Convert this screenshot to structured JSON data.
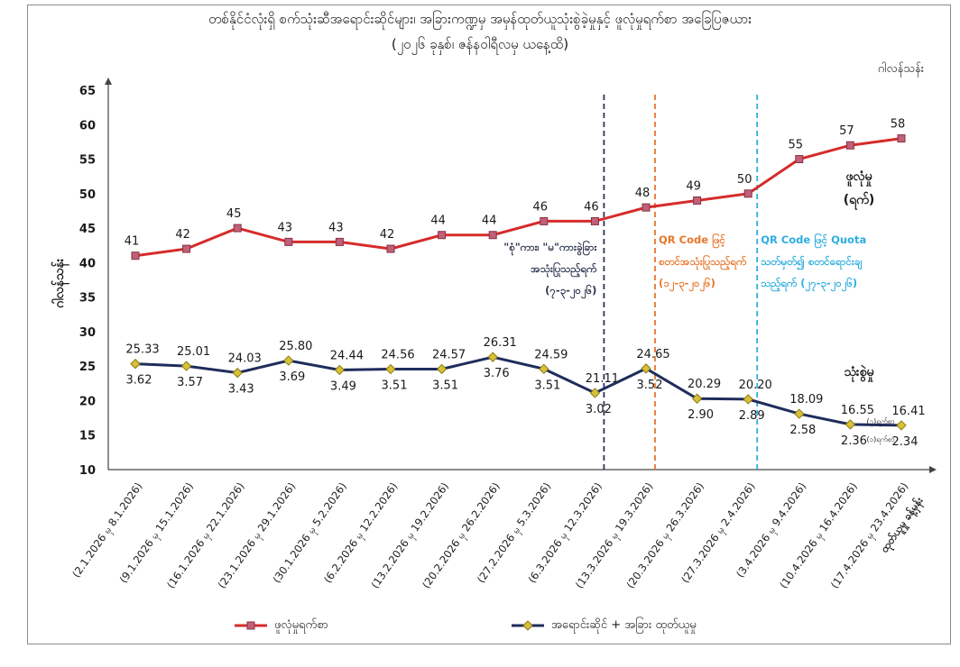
{
  "chart_data": {
    "type": "line",
    "title_line1": "တစ်နိုင်ငံလုံးရှိ စက်သုံးဆီအရောင်းဆိုင်များ၊ အခြားကဏ္ဍမှ အမှန်ထုတ်ယူသုံးစွဲခဲ့မှုနှင့် ဖူလုံမှုရက်စာ အခြေပြဇယား",
    "title_line2": "(၂၀၂၆ ခုနှစ်၊ ဇန်နဝါရီလမှ ယနေ့ထိ)",
    "unit_top": "ဂါလန်သန်း",
    "ylabel": "ဂါလန်သန်း",
    "ylim": [
      10,
      65
    ],
    "yticks": [
      "10",
      "15",
      "20",
      "25",
      "30",
      "35",
      "40",
      "45",
      "50",
      "55",
      "60",
      "65"
    ],
    "categories": [
      "(2.1.2026 မှ 8.1.2026)",
      "(9.1.2026 မှ 15.1.2026)",
      "(16.1.2026 မှ 22.1.2026)",
      "(23.1.2026 မှ 29.1.2026)",
      "(30.1.2026 မှ 5.2.2026)",
      "(6.2.2026 မှ 12.2.2026)",
      "(13.2.2026 မှ 19.2.2026)",
      "(20.2.2026 မှ 26.2.2026)",
      "(27.2.2026 မှ 5.3.2026)",
      "(6.3.2026 မှ 12.3.2026)",
      "(13.3.2026 မှ 19.3.2026)",
      "(20.3.2026 မှ 26.3.2026)",
      "(27.3.2026 မှ 2.4.2026)",
      "(3.4.2026 မှ 9.4.2026)",
      "(10.4.2026 မှ 16.4.2026)",
      "(17.4.2026 မှ 23.4.2026)"
    ],
    "last_category_line2": "ထုတ်ယူမှု ခန့်မှန်း",
    "series": [
      {
        "name": "ဖူလုံမှုရက်စာ",
        "color": "#d62b2b",
        "marker_color": "#c0607a",
        "values": [
          41,
          42,
          45,
          43,
          43,
          42,
          44,
          44,
          46,
          46,
          48,
          49,
          50,
          55,
          57,
          58
        ],
        "labels": [
          "41",
          "42",
          "45",
          "43",
          "43",
          "42",
          "44",
          "44",
          "46",
          "46",
          "48",
          "49",
          "50",
          "55",
          "57",
          "58"
        ]
      },
      {
        "name": "အရောင်းဆိုင် + အခြား ထုတ်ယူမှု",
        "color": "#1f2d5c",
        "marker_color": "#d8c13a",
        "values": [
          25.33,
          25.01,
          24.03,
          25.8,
          24.44,
          24.56,
          24.57,
          26.31,
          24.59,
          21.11,
          24.65,
          20.29,
          20.2,
          18.09,
          16.55,
          16.41
        ],
        "labels": [
          "25.33",
          "25.01",
          "24.03",
          "25.80",
          "24.44",
          "24.56",
          "24.57",
          "26.31",
          "24.59",
          "21.11",
          "24.65",
          "20.29",
          "20.20",
          "18.09",
          "16.55",
          "16.41"
        ],
        "daily_labels": [
          "3.62",
          "3.57",
          "3.43",
          "3.69",
          "3.49",
          "3.51",
          "3.51",
          "3.76",
          "3.51",
          "3.02",
          "3.52",
          "2.90",
          "2.89",
          "2.58",
          "2.36",
          "2.34"
        ]
      }
    ],
    "series_tags": {
      "red": [
        "ဖူလုံမှု",
        "(ရက်)"
      ],
      "blue": "သုံးစွဲမှု"
    },
    "small_notes": [
      "(၇)ရက်စာ",
      "(၁)ရက်စာ"
    ],
    "vlines": [
      {
        "after_index": 9,
        "color": "#2c3550",
        "lines": [
          "\"စုံ\"ကား၊ \"မ\"ကားခွဲခြား",
          "အသုံးပြုသည့်ရက်",
          "(၇-၃-၂၀၂၆)"
        ]
      },
      {
        "after_index": 10,
        "color": "#e8762b",
        "lines": [
          "QR Code ဖြင့်",
          "စတင်အသုံးပြုသည့်ရက်",
          "(၁၂-၃-၂၀၂၆)"
        ]
      },
      {
        "after_index": 12,
        "color": "#2eaee0",
        "lines": [
          "QR Code ဖြင့် Quota",
          "သတ်မှတ်၍ စတင်ရောင်းချ",
          "သည့်ရက် (၂၇-၃-၂၀၂၆)"
        ]
      }
    ]
  }
}
